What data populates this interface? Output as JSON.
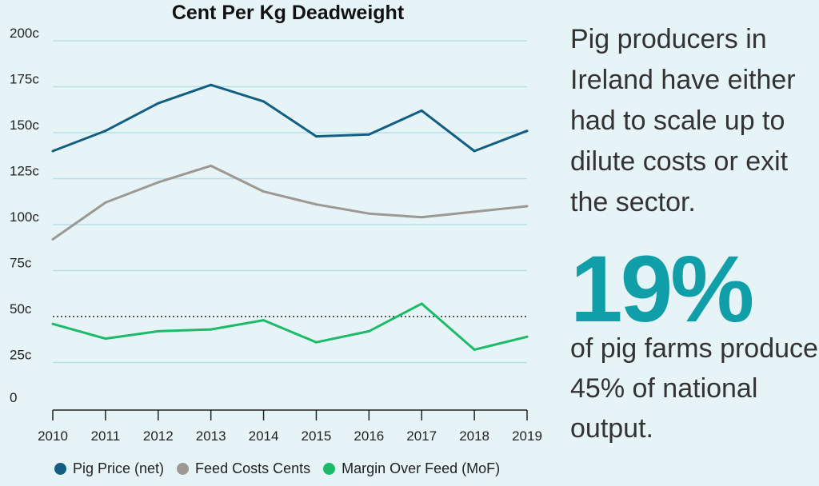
{
  "chart_data": {
    "type": "line",
    "title": "Cent Per Kg Deadweight",
    "categories": [
      "2010",
      "2011",
      "2012",
      "2013",
      "2014",
      "2015",
      "2016",
      "2017",
      "2018",
      "2019"
    ],
    "ylim": [
      0,
      200
    ],
    "yticks": [
      {
        "v": 0,
        "label": "0"
      },
      {
        "v": 25,
        "label": "25c"
      },
      {
        "v": 50,
        "label": "50c"
      },
      {
        "v": 75,
        "label": "75c"
      },
      {
        "v": 100,
        "label": "100c"
      },
      {
        "v": 125,
        "label": "125c"
      },
      {
        "v": 150,
        "label": "150c"
      },
      {
        "v": 175,
        "label": "175c"
      },
      {
        "v": 200,
        "label": "200c"
      }
    ],
    "grid": true,
    "reference_line": {
      "value": 50,
      "style": "dotted"
    },
    "legend_position": "bottom",
    "series": [
      {
        "name": "Pig Price (net)",
        "color": "#135e82",
        "values": [
          140,
          151,
          166,
          176,
          167,
          148,
          149,
          162,
          140,
          151
        ]
      },
      {
        "name": "Feed Costs Cents",
        "color": "#9c9893",
        "values": [
          92,
          112,
          123,
          132,
          118,
          111,
          106,
          104,
          107,
          110
        ]
      },
      {
        "name": "Margin Over Feed (MoF)",
        "color": "#1dbb69",
        "values": [
          46,
          38,
          42,
          43,
          48,
          36,
          42,
          57,
          32,
          39
        ]
      }
    ]
  },
  "side": {
    "headline": "Pig producers in Ireland have either had to scale up to dilute costs or exit the sector.",
    "stat": "19%",
    "stat_caption": "of pig farms produce 45% of national output."
  }
}
